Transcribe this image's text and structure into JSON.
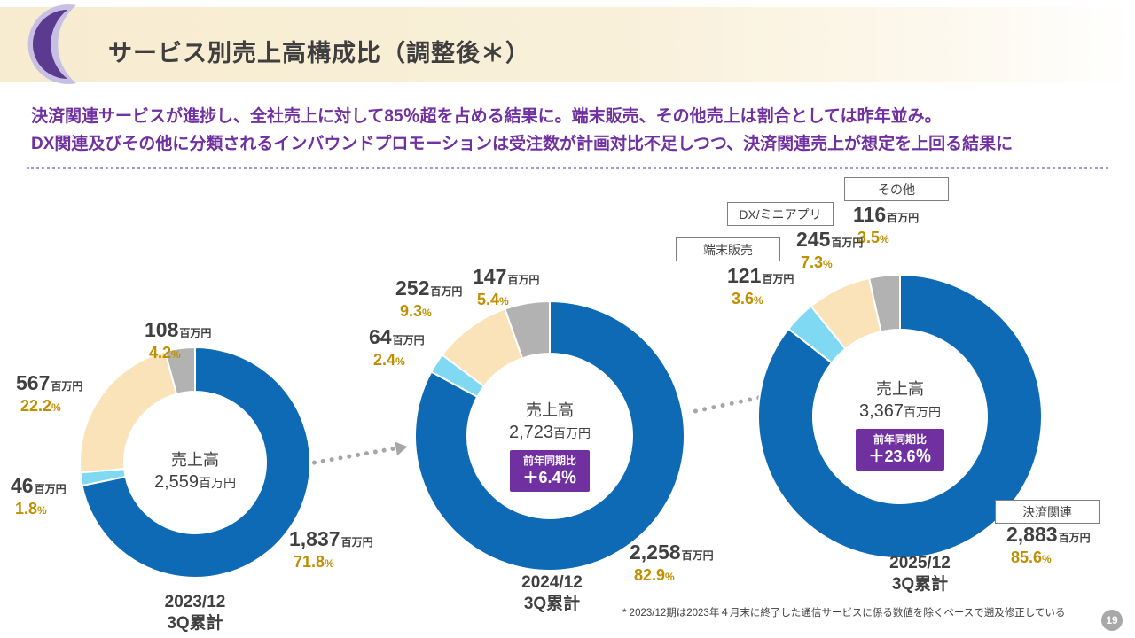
{
  "slide": {
    "title": "サービス別売上高構成比（調整後＊）",
    "headline_line1": "決済関連サービスが進捗し、全社売上に対して85％超を占める結果に。端末販売、その他売上は割合としては昨年並み。",
    "headline_line2": "DX関連及びその他に分類されるインバウンドプロモーションは受注数が計画対比不足しつつ、決済関連売上が想定を上回る結果に",
    "footnote": "* 2023/12期は2023年４月末に終了した通信サービスに係る数値を除くベースで遡及修正している",
    "page_number": "19"
  },
  "units": {
    "million_yen": "百万円",
    "percent": "%"
  },
  "legend": [
    {
      "key": "other",
      "label": "その他"
    },
    {
      "key": "dx",
      "label": "DX/ミニアプリ"
    },
    {
      "key": "terminal",
      "label": "端末販売"
    },
    {
      "key": "payment",
      "label": "決済関連"
    }
  ],
  "colors": {
    "payment": "#0e6ab5",
    "terminal": "#7fd9f2",
    "dx": "#fae3b8",
    "other": "#b2b2b2",
    "accent_purple": "#7030a0",
    "percent_gold": "#bf8f00"
  },
  "chart_data": [
    {
      "type": "pie",
      "donut": true,
      "period_line1": "2023/12",
      "period_line2": "3Q累計",
      "center_label": "売上高",
      "center_value": "2,559",
      "segments": [
        {
          "key": "payment",
          "name": "決済関連",
          "value": "1,837",
          "pct": 71.8,
          "pct_label": "71.8",
          "color": "#0e6ab5"
        },
        {
          "key": "terminal",
          "name": "端末販売",
          "value": "46",
          "pct": 1.8,
          "pct_label": "1.8",
          "color": "#7fd9f2"
        },
        {
          "key": "dx",
          "name": "DX/ミニアプリ",
          "value": "567",
          "pct": 22.2,
          "pct_label": "22.2",
          "color": "#fae3b8"
        },
        {
          "key": "other",
          "name": "その他",
          "value": "108",
          "pct": 4.2,
          "pct_label": "4.2",
          "color": "#b2b2b2"
        }
      ]
    },
    {
      "type": "pie",
      "donut": true,
      "period_line1": "2024/12",
      "period_line2": "3Q累計",
      "center_label": "売上高",
      "center_value": "2,723",
      "yoy_label": "前年同期比",
      "yoy_value": "＋6.4％",
      "segments": [
        {
          "key": "payment",
          "name": "決済関連",
          "value": "2,258",
          "pct": 82.9,
          "pct_label": "82.9",
          "color": "#0e6ab5"
        },
        {
          "key": "terminal",
          "name": "端末販売",
          "value": "64",
          "pct": 2.4,
          "pct_label": "2.4",
          "color": "#7fd9f2"
        },
        {
          "key": "dx",
          "name": "DX/ミニアプリ",
          "value": "252",
          "pct": 9.3,
          "pct_label": "9.3",
          "color": "#fae3b8"
        },
        {
          "key": "other",
          "name": "その他",
          "value": "147",
          "pct": 5.4,
          "pct_label": "5.4",
          "color": "#b2b2b2"
        }
      ]
    },
    {
      "type": "pie",
      "donut": true,
      "period_line1": "2025/12",
      "period_line2": "3Q累計",
      "center_label": "売上高",
      "center_value": "3,367",
      "yoy_label": "前年同期比",
      "yoy_value": "＋23.6％",
      "segments": [
        {
          "key": "payment",
          "name": "決済関連",
          "value": "2,883",
          "pct": 85.6,
          "pct_label": "85.6",
          "color": "#0e6ab5"
        },
        {
          "key": "terminal",
          "name": "端末販売",
          "value": "121",
          "pct": 3.6,
          "pct_label": "3.6",
          "color": "#7fd9f2"
        },
        {
          "key": "dx",
          "name": "DX/ミニアプリ",
          "value": "245",
          "pct": 7.3,
          "pct_label": "7.3",
          "color": "#fae3b8"
        },
        {
          "key": "other",
          "name": "その他",
          "value": "116",
          "pct": 3.5,
          "pct_label": "3.5",
          "color": "#b2b2b2"
        }
      ]
    }
  ]
}
